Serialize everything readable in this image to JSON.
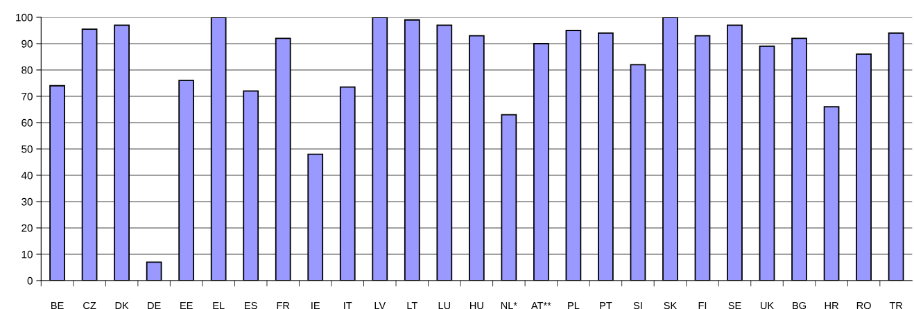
{
  "chart_data": {
    "type": "bar",
    "categories": [
      "BE",
      "CZ",
      "DK",
      "DE",
      "EE",
      "EL",
      "ES",
      "FR",
      "IE",
      "IT",
      "LV",
      "LT",
      "LU",
      "HU",
      "NL*",
      "AT**",
      "PL",
      "PT",
      "SI",
      "SK",
      "FI",
      "SE",
      "UK",
      "BG",
      "HR",
      "RO",
      "TR"
    ],
    "values": [
      74,
      95.5,
      97,
      7,
      76,
      100,
      72,
      92,
      48,
      73.5,
      100,
      99,
      97,
      93,
      63,
      90,
      95,
      94,
      82,
      100,
      93,
      97,
      89,
      92,
      66,
      86,
      94
    ],
    "color": "#9999ff",
    "ylim": [
      0,
      100
    ],
    "yticks": [
      0,
      10,
      20,
      30,
      40,
      50,
      60,
      70,
      80,
      90,
      100
    ],
    "grid": "y"
  }
}
